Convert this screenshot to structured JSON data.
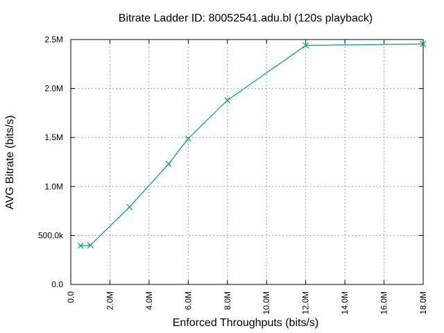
{
  "chart_data": {
    "type": "line",
    "title": "Bitrate Ladder ID: 80052541.adu.bl (120s playback)",
    "xlabel": "Enforced Throughputs (bits/s)",
    "ylabel": "AVG Bitrate (bits/s)",
    "xlim": [
      0,
      18000000
    ],
    "ylim": [
      0,
      2500000
    ],
    "x_ticks": [
      {
        "value": 0,
        "label": "0.0"
      },
      {
        "value": 2000000,
        "label": "2.0M"
      },
      {
        "value": 4000000,
        "label": "4.0M"
      },
      {
        "value": 6000000,
        "label": "6.0M"
      },
      {
        "value": 8000000,
        "label": "8.0M"
      },
      {
        "value": 10000000,
        "label": "10.0M"
      },
      {
        "value": 12000000,
        "label": "12.0M"
      },
      {
        "value": 14000000,
        "label": "14.0M"
      },
      {
        "value": 16000000,
        "label": "16.0M"
      },
      {
        "value": 18000000,
        "label": "18.0M"
      }
    ],
    "y_ticks": [
      {
        "value": 0,
        "label": "0.0"
      },
      {
        "value": 500000,
        "label": "500.0k"
      },
      {
        "value": 1000000,
        "label": "1.0M"
      },
      {
        "value": 1500000,
        "label": "1.5M"
      },
      {
        "value": 2000000,
        "label": "2.0M"
      },
      {
        "value": 2500000,
        "label": "2.5M"
      }
    ],
    "grid": true,
    "marker": "x",
    "series": [
      {
        "color": "#009e73",
        "x": [
          500000,
          1000000,
          3000000,
          5000000,
          6000000,
          8000000,
          12000000,
          18000000
        ],
        "y": [
          395000,
          400000,
          790000,
          1230000,
          1490000,
          1880000,
          2440000,
          2455000
        ]
      }
    ]
  }
}
